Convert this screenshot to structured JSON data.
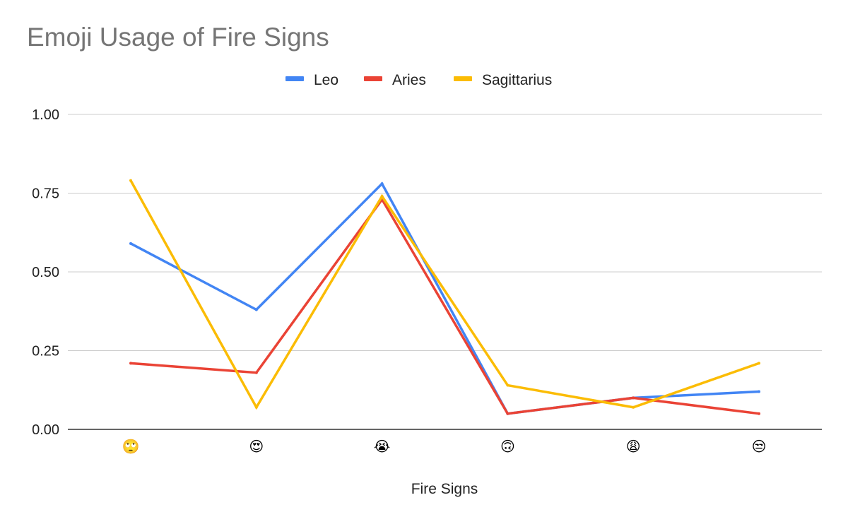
{
  "chart_data": {
    "type": "line",
    "title": "Emoji Usage of Fire Signs",
    "xlabel": "Fire Signs",
    "ylabel": "",
    "categories": [
      "🙄",
      "😍",
      "😭",
      "🙃",
      "😩",
      "😒"
    ],
    "series": [
      {
        "name": "Leo",
        "color": "#4285F4",
        "values": [
          0.59,
          0.38,
          0.78,
          0.05,
          0.1,
          0.12
        ]
      },
      {
        "name": "Aries",
        "color": "#EA4335",
        "values": [
          0.21,
          0.18,
          0.73,
          0.05,
          0.1,
          0.05
        ]
      },
      {
        "name": "Sagittarius",
        "color": "#FBBC04",
        "values": [
          0.79,
          0.07,
          0.74,
          0.14,
          0.07,
          0.21
        ]
      }
    ],
    "ylim": [
      0,
      1
    ],
    "yticks": [
      "0.00",
      "0.25",
      "0.50",
      "0.75",
      "1.00"
    ],
    "grid": true,
    "legend_position": "top-center"
  }
}
